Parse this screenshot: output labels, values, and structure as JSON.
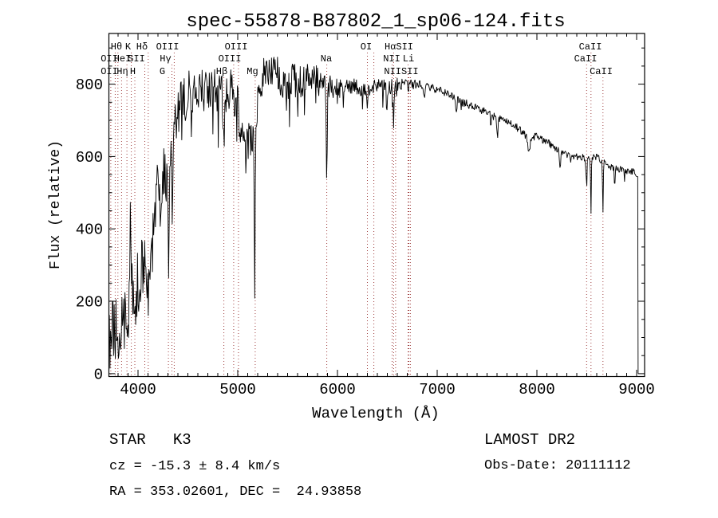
{
  "title": "spec-55878-B87802_1_sp06-124.fits",
  "footer": {
    "class_label": "STAR   K3",
    "cz": "cz = -15.3 ± 8.4 km/s",
    "radec": "RA = 353.02601, DEC =  24.93858",
    "survey": "LAMOST DR2",
    "obs_date": "Obs-Date: 20111112"
  },
  "chart_data": {
    "type": "line",
    "title": "spec-55878-B87802_1_sp06-124.fits",
    "xlabel": "Wavelength (Å)",
    "ylabel": "Flux (relative)",
    "xlim": [
      3708,
      9080
    ],
    "ylim": [
      -8,
      940
    ],
    "xticks": [
      4000,
      5000,
      6000,
      7000,
      8000,
      9000
    ],
    "yticks": [
      0,
      200,
      400,
      600,
      800
    ],
    "x_minor_step": 100,
    "y_minor_step": 50,
    "grid": false,
    "legend": "none",
    "spectrum_color": "#000000",
    "marker_color": "#a04040",
    "continuum": [
      [
        3716,
        90,
        80
      ],
      [
        3760,
        130,
        90
      ],
      [
        3800,
        115,
        85
      ],
      [
        3850,
        170,
        95
      ],
      [
        3880,
        160,
        100
      ],
      [
        3910,
        210,
        120
      ],
      [
        3950,
        230,
        110
      ],
      [
        4000,
        260,
        110
      ],
      [
        4050,
        320,
        100
      ],
      [
        4100,
        355,
        100
      ],
      [
        4150,
        430,
        95
      ],
      [
        4200,
        520,
        90
      ],
      [
        4250,
        570,
        90
      ],
      [
        4300,
        560,
        100
      ],
      [
        4350,
        640,
        90
      ],
      [
        4400,
        700,
        90
      ],
      [
        4450,
        740,
        80
      ],
      [
        4500,
        770,
        70
      ],
      [
        4600,
        790,
        60
      ],
      [
        4700,
        780,
        65
      ],
      [
        4800,
        780,
        60
      ],
      [
        4860,
        762,
        60
      ],
      [
        4920,
        790,
        55
      ],
      [
        4980,
        762,
        60
      ],
      [
        5030,
        690,
        60
      ],
      [
        5080,
        652,
        55
      ],
      [
        5130,
        642,
        55
      ],
      [
        5160,
        660,
        60
      ],
      [
        5200,
        740,
        60
      ],
      [
        5250,
        820,
        55
      ],
      [
        5320,
        852,
        60
      ],
      [
        5400,
        822,
        60
      ],
      [
        5500,
        810,
        55
      ],
      [
        5600,
        800,
        55
      ],
      [
        5700,
        820,
        45
      ],
      [
        5800,
        815,
        40
      ],
      [
        5870,
        800,
        35
      ],
      [
        5920,
        790,
        35
      ],
      [
        6000,
        786,
        30
      ],
      [
        6100,
        800,
        25
      ],
      [
        6200,
        790,
        25
      ],
      [
        6300,
        786,
        22
      ],
      [
        6400,
        800,
        20
      ],
      [
        6500,
        790,
        22
      ],
      [
        6600,
        800,
        18
      ],
      [
        6700,
        795,
        18
      ],
      [
        6800,
        800,
        15
      ],
      [
        6900,
        795,
        13
      ],
      [
        7000,
        786,
        12
      ],
      [
        7100,
        775,
        12
      ],
      [
        7200,
        756,
        12
      ],
      [
        7300,
        745,
        12
      ],
      [
        7400,
        735,
        12
      ],
      [
        7500,
        720,
        11
      ],
      [
        7600,
        706,
        11
      ],
      [
        7700,
        700,
        11
      ],
      [
        7800,
        680,
        11
      ],
      [
        7900,
        656,
        11
      ],
      [
        8000,
        655,
        10
      ],
      [
        8100,
        640,
        10
      ],
      [
        8200,
        620,
        10
      ],
      [
        8300,
        605,
        10
      ],
      [
        8400,
        600,
        10
      ],
      [
        8500,
        595,
        10
      ],
      [
        8600,
        600,
        10
      ],
      [
        8700,
        576,
        10
      ],
      [
        8800,
        565,
        11
      ],
      [
        8900,
        560,
        11
      ],
      [
        9000,
        556,
        12
      ],
      [
        9015,
        550,
        12
      ]
    ],
    "absorption_features": [
      [
        3920,
        -240,
        5
      ],
      [
        4101,
        180,
        6
      ],
      [
        4227,
        120,
        5
      ],
      [
        4305,
        230,
        7
      ],
      [
        4340,
        160,
        5
      ],
      [
        4861,
        130,
        6
      ],
      [
        5170,
        430,
        5
      ],
      [
        5893,
        250,
        5
      ],
      [
        6300,
        52,
        4
      ],
      [
        6495,
        70,
        5
      ],
      [
        6563,
        102,
        5
      ],
      [
        6870,
        36,
        6
      ],
      [
        7190,
        42,
        6
      ],
      [
        7605,
        46,
        6
      ],
      [
        7920,
        48,
        10
      ],
      [
        8230,
        40,
        6
      ],
      [
        8498,
        72,
        3.5
      ],
      [
        8542,
        152,
        3.5
      ],
      [
        8662,
        152,
        3.5
      ],
      [
        8780,
        52,
        4
      ]
    ],
    "spike_profile": [
      [
        3716,
        0.12,
        160
      ],
      [
        4000,
        0.1,
        150
      ],
      [
        4500,
        0.08,
        140
      ],
      [
        5200,
        0.06,
        120
      ],
      [
        6000,
        0.05,
        70
      ],
      [
        6800,
        0.04,
        45
      ],
      [
        7600,
        0.04,
        40
      ],
      [
        9015,
        0.04,
        40
      ]
    ],
    "end_drop_wl": 9015,
    "line_markers": [
      [
        3727,
        3
      ],
      [
        3771,
        1
      ],
      [
        3798,
        1
      ],
      [
        3835,
        3
      ],
      [
        3889,
        2
      ],
      [
        3933,
        1
      ],
      [
        3968,
        3
      ],
      [
        4068,
        2
      ],
      [
        4102,
        1
      ],
      [
        4305,
        3
      ],
      [
        4340,
        2
      ],
      [
        4363,
        1
      ],
      [
        4861,
        3
      ],
      [
        4959,
        2
      ],
      [
        5007,
        1
      ],
      [
        5175,
        3
      ],
      [
        5893,
        2
      ],
      [
        6300,
        1
      ],
      [
        6365,
        1
      ],
      [
        6548,
        2
      ],
      [
        6563,
        1
      ],
      [
        6583,
        3
      ],
      [
        6708,
        2
      ],
      [
        6716,
        3
      ],
      [
        6731,
        3
      ],
      [
        8498,
        2
      ],
      [
        8542,
        1
      ],
      [
        8662,
        3
      ]
    ],
    "marker_labels": [
      [
        "Hθ",
        3784,
        1
      ],
      [
        "K",
        3900,
        1
      ],
      [
        "Hδ",
        4040,
        1
      ],
      [
        "OIII",
        4296,
        1
      ],
      [
        "OIII",
        4984,
        1
      ],
      [
        "OI",
        6288,
        1
      ],
      [
        "HαSII",
        6616,
        1
      ],
      [
        "CaII",
        8536,
        1
      ],
      [
        "OII",
        3712,
        2
      ],
      [
        "HeI",
        3844,
        2
      ],
      [
        "SII",
        3984,
        2
      ],
      [
        "Hγ",
        4276,
        2
      ],
      [
        "OIII",
        4920,
        2
      ],
      [
        "Na",
        5888,
        2
      ],
      [
        "NII",
        6544,
        2
      ],
      [
        "Li",
        6712,
        2
      ],
      [
        "CaII",
        8488,
        2
      ],
      [
        "OII",
        3712,
        3
      ],
      [
        "Hη",
        3844,
        3
      ],
      [
        "H",
        3948,
        3
      ],
      [
        "G",
        4244,
        3
      ],
      [
        "Hβ",
        4840,
        3
      ],
      [
        "Mg",
        5148,
        3
      ],
      [
        "NIISII",
        6640,
        3
      ],
      [
        "CaII",
        8644,
        3
      ]
    ]
  }
}
